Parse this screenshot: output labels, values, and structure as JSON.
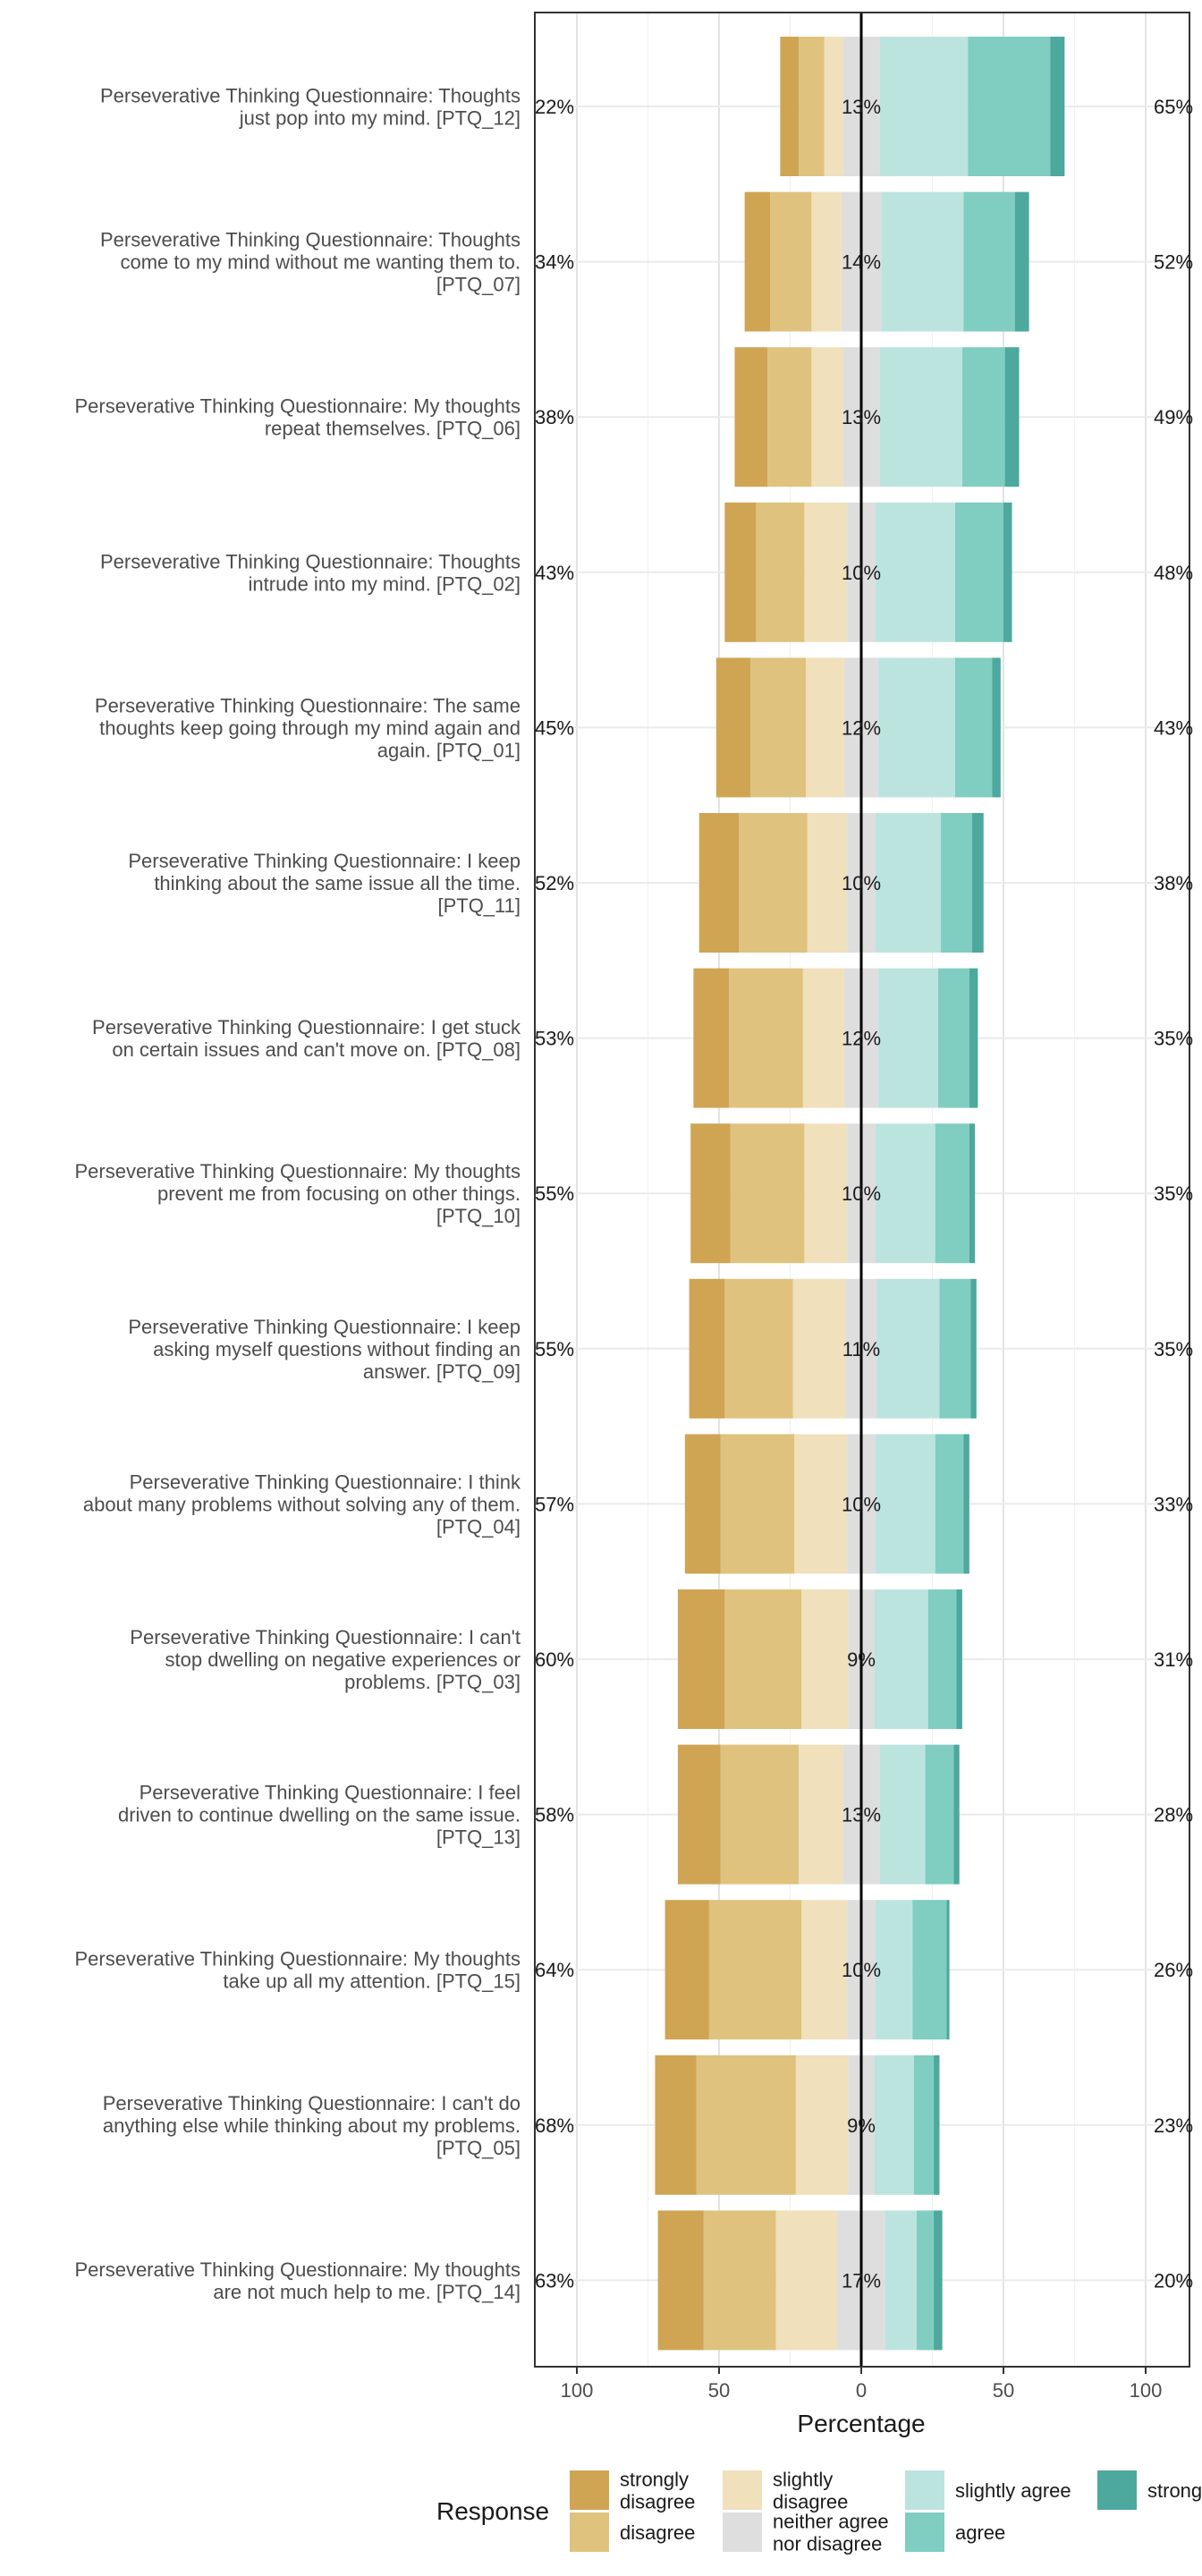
{
  "chart_data": {
    "type": "bar",
    "subtype": "diverging-stacked-likert",
    "xlabel": "Percentage",
    "xticks": [
      100,
      50,
      0,
      50,
      100
    ],
    "xlim": [
      -100,
      100
    ],
    "grid": true,
    "legend": {
      "title": "Response",
      "position": "bottom",
      "entries": [
        {
          "label": "strongly disagree",
          "lines": [
            "strongly",
            "disagree"
          ],
          "color": "#CFA453"
        },
        {
          "label": "disagree",
          "lines": [
            "disagree"
          ],
          "color": "#DFC27D"
        },
        {
          "label": "slightly disagree",
          "lines": [
            "slightly",
            "disagree"
          ],
          "color": "#F0E0BC"
        },
        {
          "label": "neither agree nor disagree",
          "lines": [
            "neither agree",
            "nor disagree"
          ],
          "color": "#DEDEDE"
        },
        {
          "label": "slightly agree",
          "lines": [
            "slightly agree"
          ],
          "color": "#BCE4DF"
        },
        {
          "label": "agree",
          "lines": [
            "agree"
          ],
          "color": "#80CDC1"
        },
        {
          "label": "strongly agree",
          "lines": [
            "strong"
          ],
          "color": "#4DA89D"
        }
      ]
    },
    "categories": [
      {
        "label": "Perseverative Thinking Questionnaire: Thoughts just pop into my mind. [PTQ_12]",
        "lines": [
          "Perseverative Thinking Questionnaire: Thoughts",
          "just pop into my mind. [PTQ_12]"
        ],
        "left_label": "22%",
        "center_label": "13%",
        "right_label": "65%",
        "values": [
          6.5,
          9.0,
          6.5,
          13,
          31,
          29,
          5
        ]
      },
      {
        "label": "Perseverative Thinking Questionnaire: Thoughts come to my mind without me wanting them to. [PTQ_07]",
        "lines": [
          "Perseverative Thinking Questionnaire: Thoughts",
          "come to my mind without me wanting them to.",
          "[PTQ_07]"
        ],
        "left_label": "34%",
        "center_label": "14%",
        "right_label": "52%",
        "values": [
          9.0,
          14.5,
          10.5,
          14,
          29,
          18,
          5
        ]
      },
      {
        "label": "Perseverative Thinking Questionnaire: My thoughts repeat themselves. [PTQ_06]",
        "lines": [
          "Perseverative Thinking Questionnaire: My thoughts",
          "repeat themselves. [PTQ_06]"
        ],
        "left_label": "38%",
        "center_label": "13%",
        "right_label": "49%",
        "values": [
          11.5,
          15.5,
          11.0,
          13,
          29,
          15,
          5
        ]
      },
      {
        "label": "Perseverative Thinking Questionnaire: Thoughts intrude into my mind. [PTQ_02]",
        "lines": [
          "Perseverative Thinking Questionnaire: Thoughts",
          "intrude into my mind. [PTQ_02]"
        ],
        "left_label": "43%",
        "center_label": "10%",
        "right_label": "48%",
        "values": [
          11.0,
          17.0,
          15.0,
          10,
          28,
          17,
          3
        ]
      },
      {
        "label": "Perseverative Thinking Questionnaire: The same thoughts keep going through my mind again and again. [PTQ_01]",
        "lines": [
          "Perseverative Thinking Questionnaire: The same",
          "thoughts keep going through my mind again and",
          "again. [PTQ_01]"
        ],
        "left_label": "45%",
        "center_label": "12%",
        "right_label": "43%",
        "values": [
          12.0,
          19.5,
          13.5,
          12,
          27,
          13,
          3
        ]
      },
      {
        "label": "Perseverative Thinking Questionnaire: I keep thinking about the same issue all the time. [PTQ_11]",
        "lines": [
          "Perseverative Thinking Questionnaire: I keep",
          "thinking about the same issue all the time.",
          "[PTQ_11]"
        ],
        "left_label": "52%",
        "center_label": "10%",
        "right_label": "38%",
        "values": [
          14.0,
          24.0,
          14.0,
          10,
          23,
          11,
          4
        ]
      },
      {
        "label": "Perseverative Thinking Questionnaire: I get stuck on certain issues and can't move on. [PTQ_08]",
        "lines": [
          "Perseverative Thinking Questionnaire: I get stuck",
          "on certain issues and can't move on. [PTQ_08]"
        ],
        "left_label": "53%",
        "center_label": "12%",
        "right_label": "35%",
        "values": [
          12.5,
          26.0,
          14.5,
          12,
          21,
          11,
          3
        ]
      },
      {
        "label": "Perseverative Thinking Questionnaire: My thoughts prevent me from focusing on other things. [PTQ_10]",
        "lines": [
          "Perseverative Thinking Questionnaire: My thoughts",
          "prevent me from focusing on other things.",
          "[PTQ_10]"
        ],
        "left_label": "55%",
        "center_label": "10%",
        "right_label": "35%",
        "values": [
          14.0,
          26.0,
          15.0,
          10,
          21,
          12,
          2
        ]
      },
      {
        "label": "Perseverative Thinking Questionnaire: I keep asking myself questions without finding an answer. [PTQ_09]",
        "lines": [
          "Perseverative Thinking Questionnaire: I keep",
          "asking myself questions without finding an",
          "answer. [PTQ_09]"
        ],
        "left_label": "55%",
        "center_label": "11%",
        "right_label": "35%",
        "values": [
          12.5,
          24.0,
          18.5,
          11,
          22,
          11,
          2
        ]
      },
      {
        "label": "Perseverative Thinking Questionnaire: I think about many problems without solving any of them. [PTQ_04]",
        "lines": [
          "Perseverative Thinking Questionnaire: I think",
          "about many problems without solving any of them.",
          "[PTQ_04]"
        ],
        "left_label": "57%",
        "center_label": "10%",
        "right_label": "33%",
        "values": [
          12.5,
          26.0,
          18.5,
          10,
          21,
          10,
          2
        ]
      },
      {
        "label": "Perseverative Thinking Questionnaire: I can't stop dwelling on negative experiences or problems. [PTQ_03]",
        "lines": [
          "Perseverative Thinking Questionnaire: I can't",
          "stop dwelling on negative experiences or",
          "problems. [PTQ_03]"
        ],
        "left_label": "60%",
        "center_label": "9%",
        "right_label": "31%",
        "values": [
          16.5,
          27.0,
          16.5,
          9,
          19,
          10,
          2
        ]
      },
      {
        "label": "Perseverative Thinking Questionnaire: I feel driven to continue dwelling on the same issue. [PTQ_13]",
        "lines": [
          "Perseverative Thinking Questionnaire: I feel",
          "driven to continue dwelling on the same issue.",
          "[PTQ_13]"
        ],
        "left_label": "58%",
        "center_label": "13%",
        "right_label": "28%",
        "values": [
          15.0,
          27.5,
          15.5,
          13,
          16,
          10,
          2
        ]
      },
      {
        "label": "Perseverative Thinking Questionnaire: My thoughts take up all my attention. [PTQ_15]",
        "lines": [
          "Perseverative Thinking Questionnaire: My thoughts",
          "take up all my attention. [PTQ_15]"
        ],
        "left_label": "64%",
        "center_label": "10%",
        "right_label": "26%",
        "values": [
          15.5,
          32.5,
          16.0,
          10,
          13,
          12,
          1
        ]
      },
      {
        "label": "Perseverative Thinking Questionnaire: I can't do anything else while thinking about my problems. [PTQ_05]",
        "lines": [
          "Perseverative Thinking Questionnaire: I can't do",
          "anything else while thinking about my problems.",
          "[PTQ_05]"
        ],
        "left_label": "68%",
        "center_label": "9%",
        "right_label": "23%",
        "values": [
          14.5,
          35.0,
          18.5,
          9,
          14,
          7,
          2
        ]
      },
      {
        "label": "Perseverative Thinking Questionnaire: My thoughts are not much help to me. [PTQ_14]",
        "lines": [
          "Perseverative Thinking Questionnaire: My thoughts",
          "are not much help to me. [PTQ_14]"
        ],
        "left_label": "63%",
        "center_label": "17%",
        "right_label": "20%",
        "values": [
          16.0,
          25.5,
          21.5,
          17,
          11,
          6,
          3
        ]
      }
    ]
  }
}
